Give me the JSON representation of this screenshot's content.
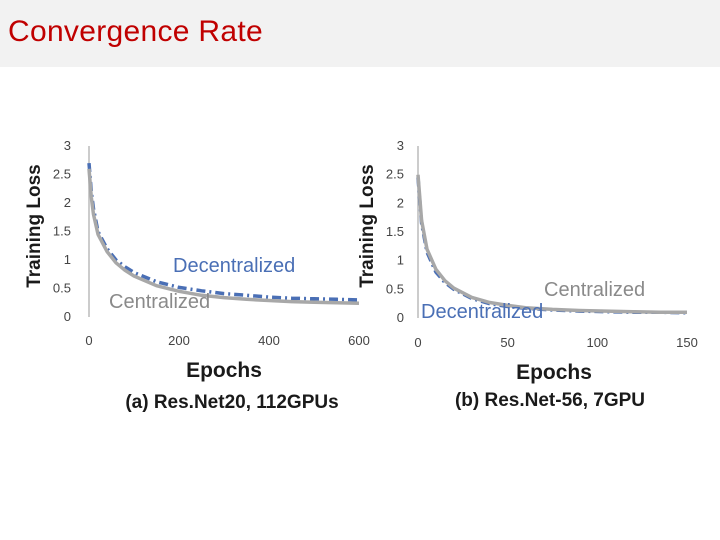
{
  "title": "Convergence Rate",
  "colors": {
    "title": "#c00000",
    "title_bar": "#f2f2f2",
    "centralized": "#a8a8a8",
    "decentralized": "#4a6fb5"
  },
  "chart_data": [
    {
      "type": "line",
      "caption": "(a) Res.Net20, 112GPUs",
      "xlabel": "Epochs",
      "ylabel": "Training Loss",
      "xlim": [
        0,
        600
      ],
      "ylim": [
        0,
        3
      ],
      "x_ticks": [
        "0",
        "200",
        "400",
        "600"
      ],
      "y_ticks": [
        "0",
        "0.5",
        "1",
        "1.5",
        "2",
        "2.5",
        "3"
      ],
      "annotations": {
        "decentralized": "Decentralized",
        "centralized": "Centralized"
      },
      "series": [
        {
          "name": "Centralized",
          "x": [
            0,
            5,
            10,
            20,
            40,
            60,
            80,
            100,
            150,
            200,
            250,
            300,
            350,
            400,
            450,
            500,
            550,
            600
          ],
          "y": [
            2.6,
            2.1,
            1.8,
            1.45,
            1.15,
            0.95,
            0.82,
            0.72,
            0.55,
            0.45,
            0.38,
            0.34,
            0.31,
            0.29,
            0.27,
            0.26,
            0.25,
            0.24
          ]
        },
        {
          "name": "Decentralized",
          "x": [
            0,
            5,
            10,
            20,
            40,
            60,
            80,
            100,
            150,
            200,
            250,
            300,
            350,
            400,
            450,
            500,
            550,
            600
          ],
          "y": [
            2.7,
            2.2,
            1.9,
            1.5,
            1.2,
            1.0,
            0.88,
            0.78,
            0.62,
            0.52,
            0.46,
            0.41,
            0.38,
            0.35,
            0.33,
            0.32,
            0.31,
            0.3
          ]
        }
      ]
    },
    {
      "type": "line",
      "caption": "(b) Res.Net-56, 7GPU",
      "xlabel": "Epochs",
      "ylabel": "Training Loss",
      "xlim": [
        0,
        150
      ],
      "ylim": [
        0,
        3
      ],
      "x_ticks": [
        "0",
        "50",
        "100",
        "150"
      ],
      "y_ticks": [
        "0",
        "0.5",
        "1",
        "1.5",
        "2",
        "2.5",
        "3"
      ],
      "annotations": {
        "decentralized": "Decentralized",
        "centralized": "Centralized"
      },
      "series": [
        {
          "name": "Centralized",
          "x": [
            0,
            2,
            5,
            10,
            15,
            20,
            30,
            40,
            50,
            60,
            75,
            90,
            105,
            120,
            135,
            150
          ],
          "y": [
            2.5,
            1.7,
            1.2,
            0.85,
            0.65,
            0.52,
            0.36,
            0.27,
            0.22,
            0.18,
            0.15,
            0.13,
            0.12,
            0.11,
            0.1,
            0.1
          ]
        },
        {
          "name": "Decentralized",
          "x": [
            0,
            2,
            5,
            10,
            15,
            20,
            30,
            40,
            50,
            60,
            75,
            90,
            105,
            120,
            135,
            150
          ],
          "y": [
            2.45,
            1.65,
            1.15,
            0.8,
            0.62,
            0.5,
            0.34,
            0.25,
            0.2,
            0.17,
            0.14,
            0.12,
            0.11,
            0.1,
            0.1,
            0.09
          ]
        }
      ]
    }
  ]
}
